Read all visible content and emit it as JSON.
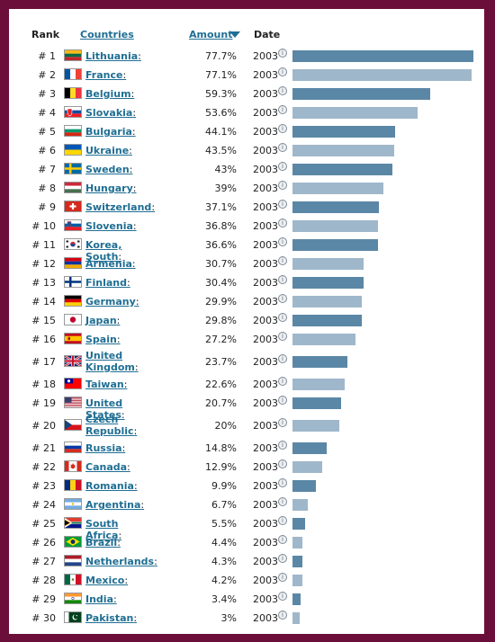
{
  "header": {
    "rank": "Rank",
    "countries": "Countries",
    "amount": "Amount",
    "date": "Date"
  },
  "colors": {
    "bar_dark": "#5b87a6",
    "bar_light": "#9fb7ca",
    "frame": "#6b0f3a",
    "link": "#1f6e93"
  },
  "info_icon": "i",
  "rows": [
    {
      "rank": "# 1",
      "country": "Lithuania",
      "amount": "77.7%",
      "value": 77.7,
      "year": "2003",
      "flag": "lithuania",
      "dark": true
    },
    {
      "rank": "# 2",
      "country": "France",
      "amount": "77.1%",
      "value": 77.1,
      "year": "2003",
      "flag": "france",
      "dark": false
    },
    {
      "rank": "# 3",
      "country": "Belgium",
      "amount": "59.3%",
      "value": 59.3,
      "year": "2003",
      "flag": "belgium",
      "dark": true
    },
    {
      "rank": "# 4",
      "country": "Slovakia",
      "amount": "53.6%",
      "value": 53.6,
      "year": "2003",
      "flag": "slovakia",
      "dark": false
    },
    {
      "rank": "# 5",
      "country": "Bulgaria",
      "amount": "44.1%",
      "value": 44.1,
      "year": "2003",
      "flag": "bulgaria",
      "dark": true
    },
    {
      "rank": "# 6",
      "country": "Ukraine",
      "amount": "43.5%",
      "value": 43.5,
      "year": "2003",
      "flag": "ukraine",
      "dark": false
    },
    {
      "rank": "# 7",
      "country": "Sweden",
      "amount": "43%",
      "value": 43,
      "year": "2003",
      "flag": "sweden",
      "dark": true
    },
    {
      "rank": "# 8",
      "country": "Hungary",
      "amount": "39%",
      "value": 39,
      "year": "2003",
      "flag": "hungary",
      "dark": false
    },
    {
      "rank": "# 9",
      "country": "Switzerland",
      "amount": "37.1%",
      "value": 37.1,
      "year": "2003",
      "flag": "switzerland",
      "dark": true
    },
    {
      "rank": "# 10",
      "country": "Slovenia",
      "amount": "36.8%",
      "value": 36.8,
      "year": "2003",
      "flag": "slovenia",
      "dark": false
    },
    {
      "rank": "# 11",
      "country": "Korea, South",
      "amount": "36.6%",
      "value": 36.6,
      "year": "2003",
      "flag": "korea",
      "dark": true
    },
    {
      "rank": "# 12",
      "country": "Armenia",
      "amount": "30.7%",
      "value": 30.7,
      "year": "2003",
      "flag": "armenia",
      "dark": false
    },
    {
      "rank": "# 13",
      "country": "Finland",
      "amount": "30.4%",
      "value": 30.4,
      "year": "2003",
      "flag": "finland",
      "dark": true
    },
    {
      "rank": "# 14",
      "country": "Germany",
      "amount": "29.9%",
      "value": 29.9,
      "year": "2003",
      "flag": "germany",
      "dark": false
    },
    {
      "rank": "# 15",
      "country": "Japan",
      "amount": "29.8%",
      "value": 29.8,
      "year": "2003",
      "flag": "japan",
      "dark": true
    },
    {
      "rank": "# 16",
      "country": "Spain",
      "amount": "27.2%",
      "value": 27.2,
      "year": "2003",
      "flag": "spain",
      "dark": false
    },
    {
      "rank": "# 17",
      "country": "United Kingdom",
      "amount": "23.7%",
      "value": 23.7,
      "year": "2003",
      "flag": "uk",
      "dark": true,
      "double": true
    },
    {
      "rank": "# 18",
      "country": "Taiwan",
      "amount": "22.6%",
      "value": 22.6,
      "year": "2003",
      "flag": "taiwan",
      "dark": false
    },
    {
      "rank": "# 19",
      "country": "United States",
      "amount": "20.7%",
      "value": 20.7,
      "year": "2003",
      "flag": "usa",
      "dark": true
    },
    {
      "rank": "# 20",
      "country": "Czech Republic",
      "amount": "20%",
      "value": 20,
      "year": "2003",
      "flag": "czech",
      "dark": false,
      "double": true
    },
    {
      "rank": "# 21",
      "country": "Russia",
      "amount": "14.8%",
      "value": 14.8,
      "year": "2003",
      "flag": "russia",
      "dark": true
    },
    {
      "rank": "# 22",
      "country": "Canada",
      "amount": "12.9%",
      "value": 12.9,
      "year": "2003",
      "flag": "canada",
      "dark": false
    },
    {
      "rank": "# 23",
      "country": "Romania",
      "amount": "9.9%",
      "value": 9.9,
      "year": "2003",
      "flag": "romania",
      "dark": true
    },
    {
      "rank": "# 24",
      "country": "Argentina",
      "amount": "6.7%",
      "value": 6.7,
      "year": "2003",
      "flag": "argentina",
      "dark": false
    },
    {
      "rank": "# 25",
      "country": "South Africa",
      "amount": "5.5%",
      "value": 5.5,
      "year": "2003",
      "flag": "southafrica",
      "dark": true
    },
    {
      "rank": "# 26",
      "country": "Brazil",
      "amount": "4.4%",
      "value": 4.4,
      "year": "2003",
      "flag": "brazil",
      "dark": false
    },
    {
      "rank": "# 27",
      "country": "Netherlands",
      "amount": "4.3%",
      "value": 4.3,
      "year": "2003",
      "flag": "netherlands",
      "dark": true
    },
    {
      "rank": "# 28",
      "country": "Mexico",
      "amount": "4.2%",
      "value": 4.2,
      "year": "2003",
      "flag": "mexico",
      "dark": false
    },
    {
      "rank": "# 29",
      "country": "India",
      "amount": "3.4%",
      "value": 3.4,
      "year": "2003",
      "flag": "india",
      "dark": true
    },
    {
      "rank": "# 30",
      "country": "Pakistan",
      "amount": "3%",
      "value": 3,
      "year": "2003",
      "flag": "pakistan",
      "dark": false
    }
  ],
  "chart_data": {
    "type": "bar",
    "title": "",
    "xlabel": "",
    "ylabel": "Amount",
    "categories": [
      "Lithuania",
      "France",
      "Belgium",
      "Slovakia",
      "Bulgaria",
      "Ukraine",
      "Sweden",
      "Hungary",
      "Switzerland",
      "Slovenia",
      "Korea, South",
      "Armenia",
      "Finland",
      "Germany",
      "Japan",
      "Spain",
      "United Kingdom",
      "Taiwan",
      "United States",
      "Czech Republic",
      "Russia",
      "Canada",
      "Romania",
      "Argentina",
      "South Africa",
      "Brazil",
      "Netherlands",
      "Mexico",
      "India",
      "Pakistan"
    ],
    "values": [
      77.7,
      77.1,
      59.3,
      53.6,
      44.1,
      43.5,
      43,
      39,
      37.1,
      36.8,
      36.6,
      30.7,
      30.4,
      29.9,
      29.8,
      27.2,
      23.7,
      22.6,
      20.7,
      20,
      14.8,
      12.9,
      9.9,
      6.7,
      5.5,
      4.4,
      4.3,
      4.2,
      3.4,
      3
    ],
    "ylim": [
      0,
      77.7
    ],
    "orientation": "horizontal",
    "year": "2003",
    "grid": false
  }
}
